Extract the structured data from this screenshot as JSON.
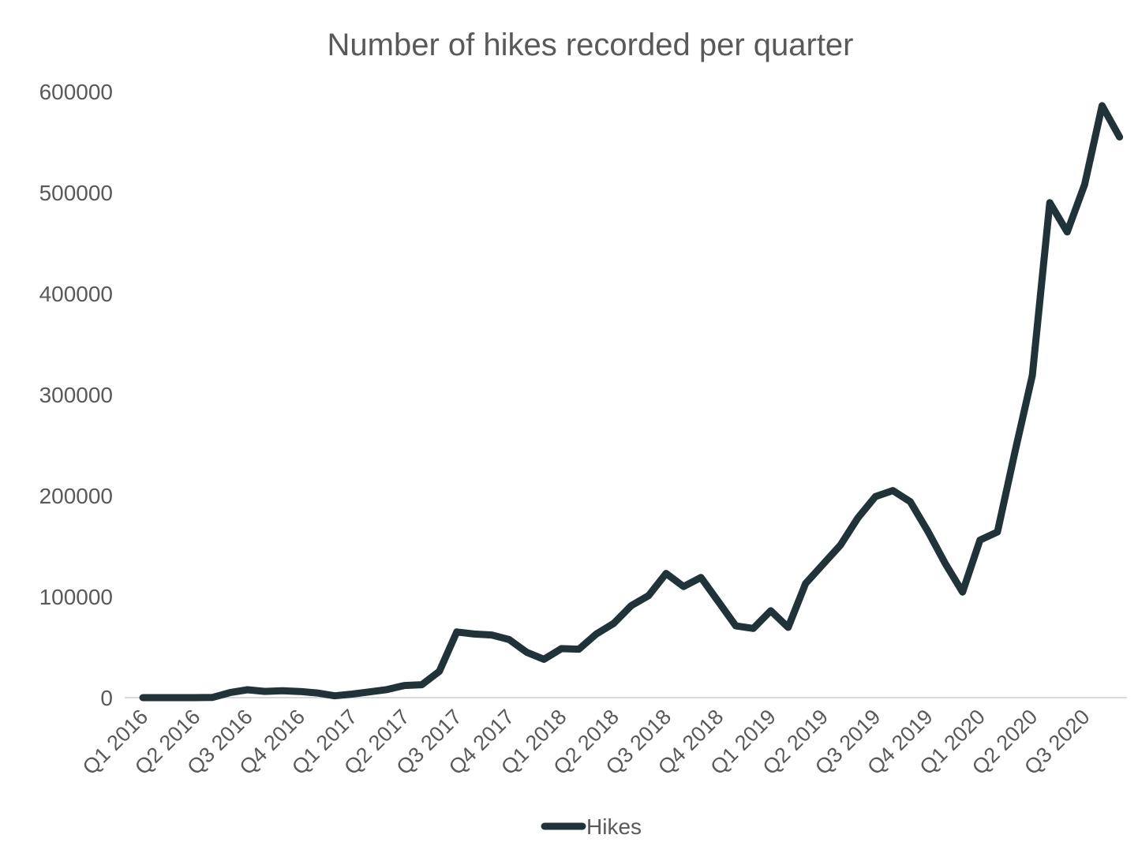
{
  "chart_data": {
    "type": "line",
    "title": "Number of hikes recorded per quarter",
    "xlabel": "",
    "ylabel": "",
    "ylim": [
      0,
      600000
    ],
    "yticks": [
      0,
      100000,
      200000,
      300000,
      400000,
      500000,
      600000
    ],
    "ytick_labels": [
      "0",
      "100000",
      "200000",
      "300000",
      "400000",
      "500000",
      "600000"
    ],
    "xtick_labels": [
      "Q1 2016",
      "Q2 2016",
      "Q3 2016",
      "Q4 2016",
      "Q1 2017",
      "Q2 2017",
      "Q3 2017",
      "Q4 2017",
      "Q1 2018",
      "Q2 2018",
      "Q3 2018",
      "Q4 2018",
      "Q1 2019",
      "Q2 2019",
      "Q3 2019",
      "Q4 2019",
      "Q1 2020",
      "Q2 2020",
      "Q3 2020"
    ],
    "xtick_every": 3,
    "grid": false,
    "legend_position": "bottom",
    "colors": {
      "line": "#1f3338",
      "axis": "#d9d9d9",
      "text": "#595959"
    },
    "series": [
      {
        "name": "Hikes",
        "values": [
          0,
          0,
          0,
          0,
          200,
          5000,
          7800,
          6200,
          6900,
          6100,
          4600,
          1800,
          3500,
          5700,
          8000,
          12000,
          12800,
          26000,
          65000,
          63000,
          62000,
          57500,
          45000,
          38000,
          48500,
          48000,
          63000,
          73500,
          91000,
          101000,
          123000,
          110000,
          119000,
          95000,
          71000,
          68500,
          86000,
          69500,
          113000,
          132000,
          151000,
          178000,
          199000,
          205000,
          194000,
          165000,
          133000,
          104500,
          156000,
          164000,
          243000,
          319000,
          490000,
          461000,
          508000,
          586000,
          555000
        ]
      }
    ]
  }
}
